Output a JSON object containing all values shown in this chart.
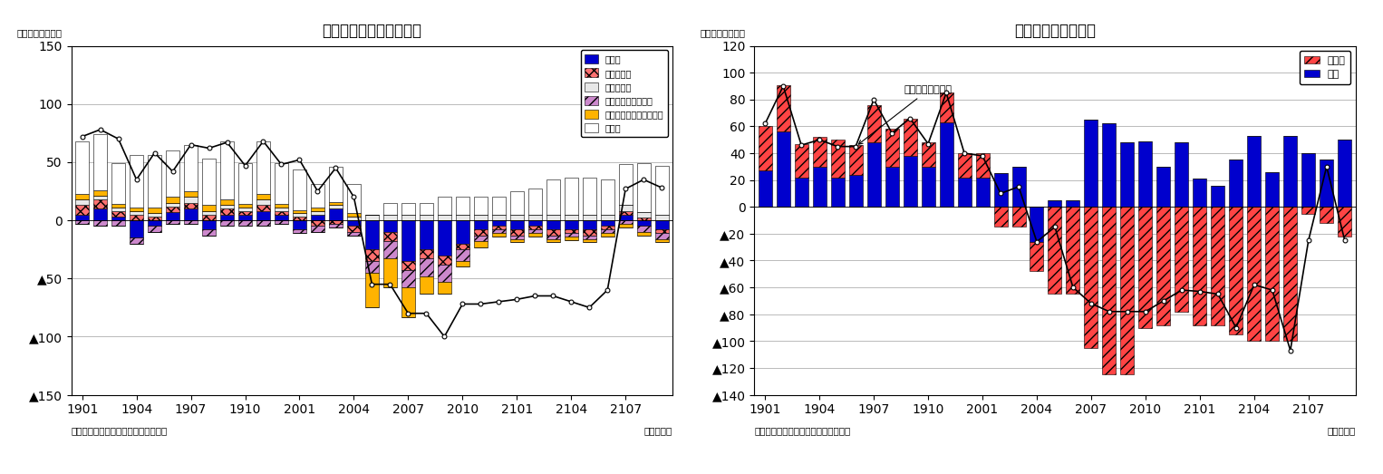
{
  "left_title": "産業別・就業者数の推移",
  "right_title": "雇用形態別雇用者数",
  "y_label": "（前年差、万人）",
  "x_label": "（年・月）",
  "source": "（資料）総務省統計局「労働力調査」",
  "left_ylim": [
    -150,
    150
  ],
  "left_yticks": [
    150,
    100,
    50,
    0,
    -50,
    -100,
    -150
  ],
  "left_ytick_labels": [
    "150",
    "100",
    "50",
    "0",
    "▲50",
    "▲100",
    "▲150"
  ],
  "right_ylim": [
    -140,
    120
  ],
  "right_yticks": [
    120,
    100,
    80,
    60,
    40,
    20,
    0,
    -20,
    -40,
    -60,
    -80,
    -100,
    -120,
    -140
  ],
  "right_ytick_labels": [
    "120",
    "100",
    "80",
    "60",
    "40",
    "20",
    "0",
    "▲20",
    "▲40",
    "▲60",
    "▲80",
    "▲100",
    "▲120",
    "▲140"
  ],
  "x_labels": [
    "1901",
    "1904",
    "1907",
    "1910",
    "2001",
    "2004",
    "2007",
    "2010",
    "2101",
    "2104",
    "2107"
  ],
  "n_bars": 33,
  "left_legend": [
    "製造業",
    "卸売・小売",
    "医療・福祉",
    "宿泊・飲食サービス",
    "生活関連サービス・娯楽",
    "その他"
  ],
  "right_legend": [
    "非正規",
    "正規"
  ],
  "annotation_text": "役員を除く雇用者",
  "manufacturing": [
    5,
    10,
    3,
    -15,
    -5,
    7,
    10,
    -8,
    5,
    5,
    8,
    5,
    -8,
    5,
    10,
    -5,
    -25,
    -10,
    -35,
    -25,
    -30,
    -20,
    -8,
    -5,
    -8,
    -5,
    -8,
    -8,
    -8,
    -5,
    5,
    -5,
    -8
  ],
  "wholesale": [
    8,
    8,
    5,
    5,
    3,
    5,
    5,
    5,
    5,
    3,
    5,
    3,
    3,
    -5,
    -3,
    -5,
    -10,
    -8,
    -8,
    -8,
    -8,
    -5,
    -5,
    -3,
    -5,
    -3,
    -5,
    -3,
    -5,
    -3,
    3,
    2,
    -3
  ],
  "medical": [
    5,
    3,
    3,
    3,
    3,
    3,
    5,
    3,
    3,
    3,
    5,
    3,
    3,
    3,
    3,
    3,
    5,
    5,
    5,
    5,
    5,
    5,
    5,
    5,
    5,
    5,
    5,
    5,
    5,
    5,
    5,
    5,
    5
  ],
  "hotel": [
    -3,
    -5,
    -5,
    -5,
    -5,
    -3,
    -3,
    -5,
    -5,
    -5,
    -5,
    -3,
    -3,
    -5,
    -3,
    -3,
    -10,
    -15,
    -15,
    -15,
    -15,
    -10,
    -5,
    -3,
    -3,
    -3,
    -3,
    -3,
    -3,
    -3,
    -3,
    -5,
    -5
  ],
  "living": [
    5,
    5,
    3,
    3,
    5,
    5,
    5,
    5,
    5,
    3,
    5,
    3,
    3,
    3,
    3,
    3,
    -30,
    -25,
    -25,
    -15,
    -10,
    -5,
    -5,
    -3,
    -3,
    -3,
    -3,
    -3,
    -3,
    -3,
    -3,
    -3,
    -3
  ],
  "other": [
    45,
    48,
    35,
    45,
    45,
    40,
    40,
    40,
    50,
    35,
    45,
    35,
    35,
    20,
    30,
    25,
    0,
    10,
    10,
    10,
    15,
    15,
    15,
    15,
    20,
    22,
    30,
    32,
    32,
    30,
    35,
    42,
    42
  ],
  "line1": [
    72,
    78,
    70,
    35,
    58,
    42,
    65,
    62,
    67,
    47,
    68,
    48,
    52,
    25,
    45,
    20,
    -55,
    -55,
    -80,
    -80,
    -100,
    -72,
    -72,
    -70,
    -68,
    -65,
    -65,
    -70,
    -75,
    -60,
    27,
    35,
    28
  ],
  "nonregular": [
    33,
    35,
    25,
    22,
    28,
    22,
    28,
    28,
    28,
    18,
    22,
    18,
    18,
    -15,
    -15,
    -22,
    -65,
    -65,
    -105,
    -125,
    -125,
    -90,
    -88,
    -78,
    -88,
    -88,
    -95,
    -100,
    -100,
    -100,
    -5,
    -12,
    -22
  ],
  "regular": [
    27,
    56,
    22,
    30,
    22,
    24,
    48,
    30,
    38,
    30,
    63,
    22,
    22,
    25,
    30,
    -26,
    5,
    5,
    65,
    62,
    48,
    49,
    30,
    48,
    21,
    16,
    35,
    53,
    26,
    53,
    40,
    35,
    50
  ],
  "line2": [
    62,
    90,
    46,
    50,
    45,
    45,
    80,
    55,
    66,
    47,
    85,
    40,
    38,
    10,
    15,
    -26,
    -15,
    -60,
    -72,
    -78,
    -78,
    -78,
    -70,
    -62,
    -63,
    -65,
    -90,
    -58,
    -62,
    -107,
    -25,
    30,
    -25
  ]
}
